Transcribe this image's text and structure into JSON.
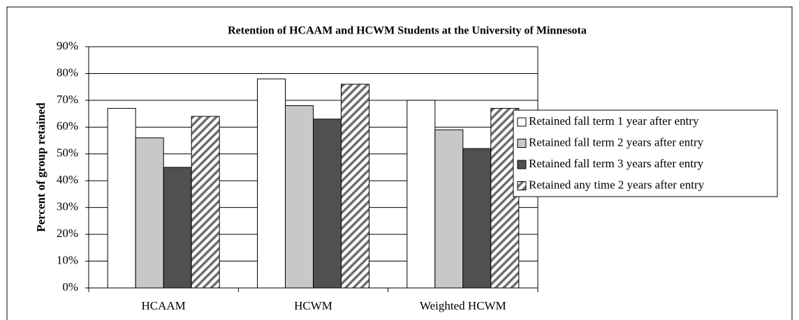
{
  "chart_data": {
    "type": "bar",
    "title": "Retention of HCAAM and HCWM Students at the University of Minnesota",
    "y_label": "Percent of group retained",
    "categories": [
      "HCAAM",
      "HCWM",
      "Weighted HCWM"
    ],
    "series": [
      {
        "name": "Retained fall term 1 year after entry",
        "color": "#ffffff",
        "values": [
          67,
          78,
          70
        ]
      },
      {
        "name": "Retained fall term 2 years after entry",
        "color": "#c8c8c8",
        "values": [
          56,
          68,
          59
        ]
      },
      {
        "name": "Retained fall term 3 years after entry",
        "color": "#505050",
        "values": [
          45,
          63,
          52
        ]
      },
      {
        "name": "Retained any time 2 years after entry",
        "color": "#6e6e6e",
        "pattern": "hatch",
        "values": [
          64,
          76,
          67
        ]
      }
    ],
    "ylim": [
      0,
      90
    ],
    "yticks": [
      {
        "value": 0,
        "label": "0%"
      },
      {
        "value": 10,
        "label": "10%"
      },
      {
        "value": 20,
        "label": "20%"
      },
      {
        "value": 30,
        "label": "30%"
      },
      {
        "value": 40,
        "label": "40%"
      },
      {
        "value": 50,
        "label": "50%"
      },
      {
        "value": 60,
        "label": "60%"
      },
      {
        "value": 70,
        "label": "70%"
      },
      {
        "value": 80,
        "label": "80%"
      },
      {
        "value": 90,
        "label": "90%"
      }
    ],
    "grid": true,
    "legend": "right"
  }
}
